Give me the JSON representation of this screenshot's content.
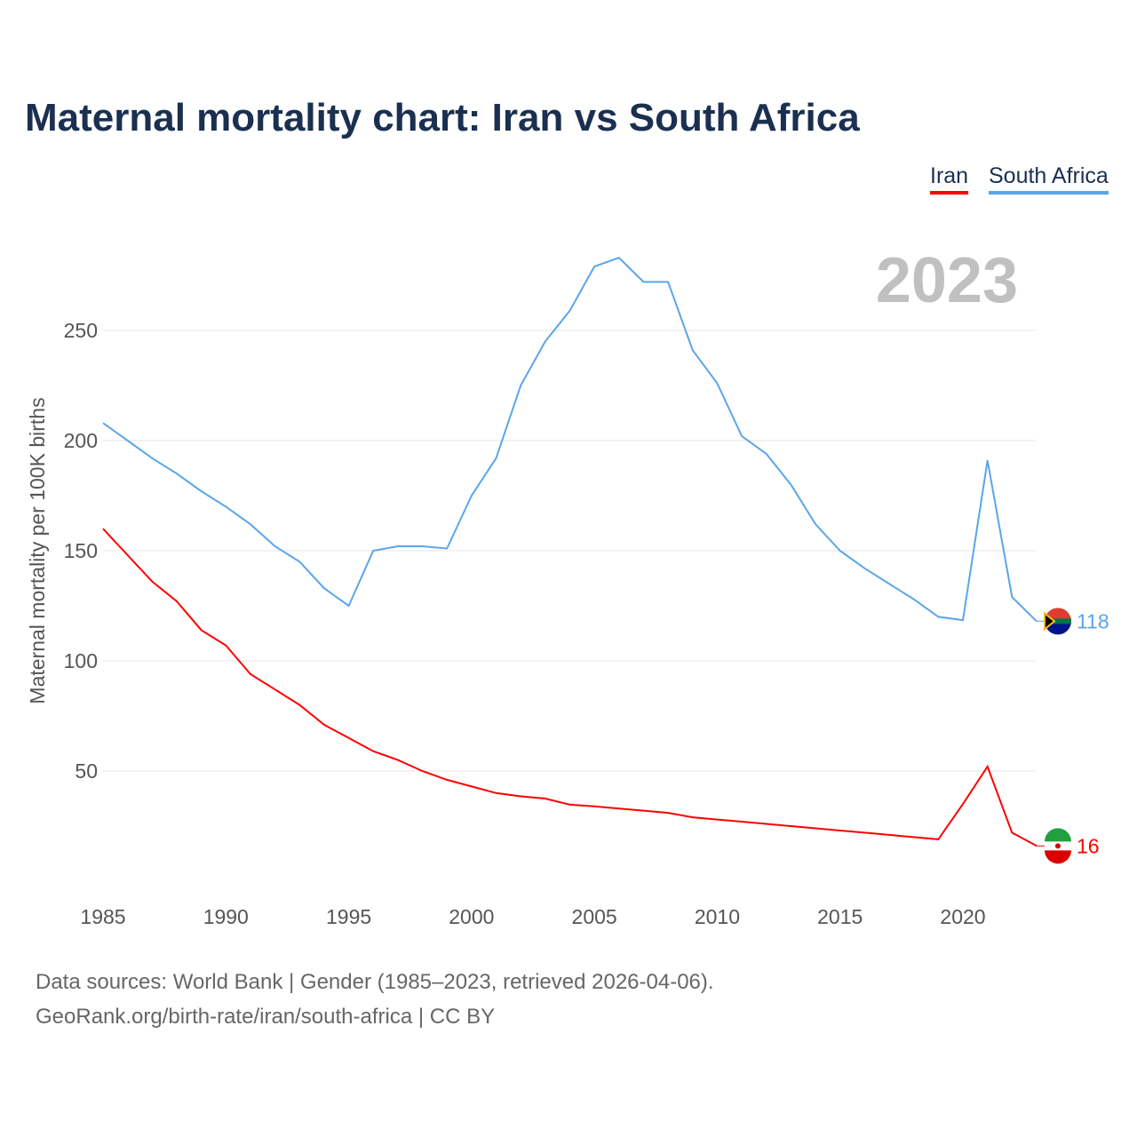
{
  "title": "Maternal mortality chart: Iran vs South Africa",
  "footer": {
    "line1": "Data sources: World Bank | Gender (1985–2023, retrieved 2026-04-06).",
    "line2": "GeoRank.org/birth-rate/iran/south-africa | CC BY"
  },
  "chart_data": {
    "type": "line",
    "title": "Maternal mortality chart: Iran vs South Africa",
    "ylabel": "Maternal mortality per 100K births",
    "xlabel": "",
    "year_label": "2023",
    "xlim": [
      1985,
      2023
    ],
    "ylim": [
      0,
      300
    ],
    "xticks": [
      1985,
      1990,
      1995,
      2000,
      2005,
      2010,
      2015,
      2020
    ],
    "yticks": [
      50,
      100,
      150,
      200,
      250
    ],
    "legend": "top-right",
    "x": [
      1985,
      1986,
      1987,
      1988,
      1989,
      1990,
      1991,
      1992,
      1993,
      1994,
      1995,
      1996,
      1997,
      1998,
      1999,
      2000,
      2001,
      2002,
      2003,
      2004,
      2005,
      2006,
      2007,
      2008,
      2009,
      2010,
      2011,
      2012,
      2013,
      2014,
      2015,
      2016,
      2017,
      2018,
      2019,
      2020,
      2021,
      2022,
      2023
    ],
    "series": [
      {
        "name": "Iran",
        "color": "#ff0000",
        "end_label": "16",
        "values": [
          160,
          148,
          136,
          127,
          114,
          107,
          94,
          87,
          80,
          71,
          65,
          59,
          55,
          50,
          46,
          43,
          40,
          38.5,
          37.5,
          34.7,
          34,
          33,
          32,
          31,
          29,
          28,
          27,
          26,
          25,
          24,
          23,
          22,
          21,
          20,
          19,
          35,
          52,
          22,
          16
        ]
      },
      {
        "name": "South Africa",
        "color": "#5aa5ea",
        "end_label": "118",
        "values": [
          208,
          200,
          192,
          185,
          177,
          170,
          162,
          152,
          145,
          133,
          125,
          150,
          152,
          152,
          151,
          175,
          192,
          225,
          245,
          259,
          279,
          283,
          272,
          272,
          241,
          226,
          202,
          194,
          180,
          162,
          150,
          142,
          135,
          128,
          120,
          118.5,
          191,
          129,
          118
        ]
      }
    ]
  }
}
